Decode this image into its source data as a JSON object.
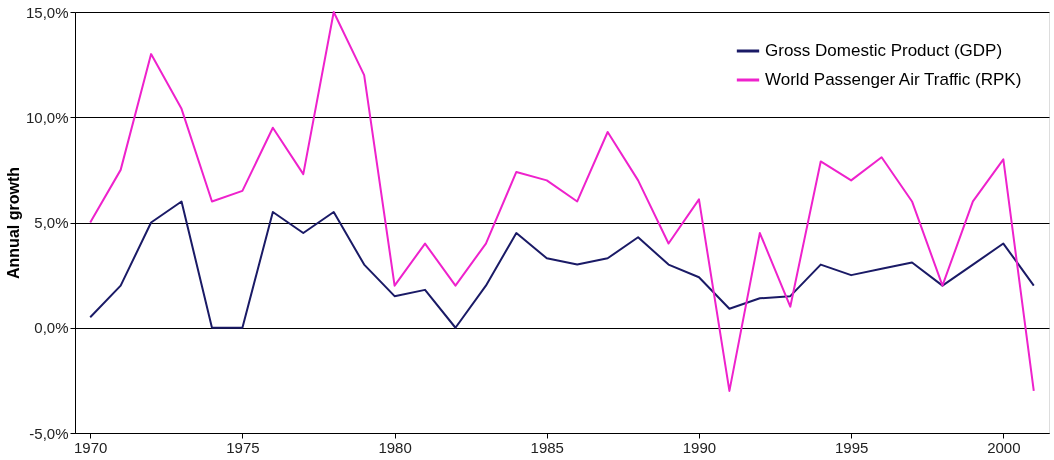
{
  "chart_data": {
    "type": "line",
    "ylabel": "Annual growth",
    "x": [
      1970,
      1971,
      1972,
      1973,
      1974,
      1975,
      1976,
      1977,
      1978,
      1979,
      1980,
      1981,
      1982,
      1983,
      1984,
      1985,
      1986,
      1987,
      1988,
      1989,
      1990,
      1991,
      1992,
      1993,
      1994,
      1995,
      1996,
      1997,
      1998,
      1999,
      2000,
      2001
    ],
    "series": [
      {
        "name": "Gross Domestic Product (GDP)",
        "color": "#1a1a66",
        "values": [
          0.5,
          2.0,
          5.0,
          6.0,
          0.0,
          0.0,
          5.5,
          4.5,
          5.5,
          3.0,
          1.5,
          1.8,
          0.0,
          2.0,
          4.5,
          3.3,
          3.0,
          3.3,
          4.3,
          3.0,
          2.4,
          0.9,
          1.4,
          1.5,
          3.0,
          2.5,
          2.8,
          3.1,
          2.0,
          3.0,
          4.0,
          2.0
        ]
      },
      {
        "name": "World Passenger Air Traffic (RPK)",
        "color": "#ee22cc",
        "values": [
          5.0,
          7.5,
          13.0,
          10.4,
          6.0,
          6.5,
          9.5,
          7.3,
          15.0,
          12.0,
          2.0,
          4.0,
          2.0,
          4.0,
          7.4,
          7.0,
          6.0,
          9.3,
          7.0,
          4.0,
          6.1,
          -3.0,
          4.5,
          1.0,
          7.9,
          7.0,
          8.1,
          6.0,
          2.0,
          6.0,
          8.0,
          -3.0
        ]
      }
    ],
    "xlim": [
      1969.5,
      2001.5
    ],
    "xticks": [
      1970,
      1975,
      1980,
      1985,
      1990,
      1995,
      2000
    ],
    "ylim": [
      -5,
      15
    ],
    "yticks": [
      {
        "value": -5,
        "label": "-5,0%"
      },
      {
        "value": 0,
        "label": "0,0%"
      },
      {
        "value": 5,
        "label": "5,0%"
      },
      {
        "value": 10,
        "label": "10,0%"
      },
      {
        "value": 15,
        "label": "15,0%"
      }
    ],
    "grid": "y",
    "legend": "top right",
    "marker": "none",
    "line_style": "solid"
  }
}
